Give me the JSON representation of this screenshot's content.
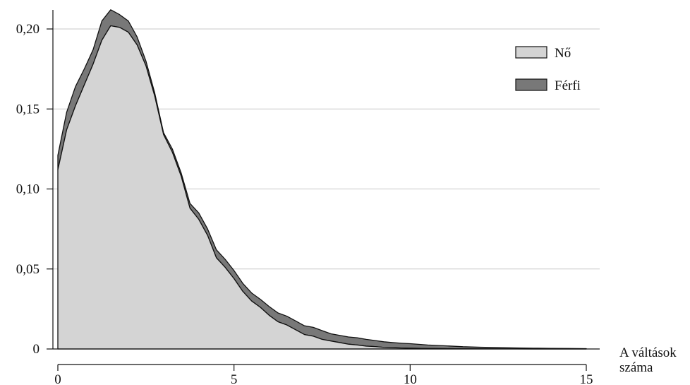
{
  "chart_data": {
    "type": "area",
    "stacked": true,
    "x": [
      0,
      0.25,
      0.5,
      0.75,
      1,
      1.25,
      1.5,
      1.75,
      2,
      2.25,
      2.5,
      2.75,
      3,
      3.25,
      3.5,
      3.75,
      4,
      4.25,
      4.5,
      4.75,
      5,
      5.25,
      5.5,
      5.75,
      6,
      6.25,
      6.5,
      6.75,
      7,
      7.25,
      7.5,
      7.75,
      8,
      8.25,
      8.5,
      8.75,
      9,
      9.25,
      9.5,
      9.75,
      10,
      10.5,
      11,
      11.5,
      12,
      12.5,
      13,
      13.5,
      14,
      14.5,
      15
    ],
    "series": [
      {
        "name": "Nő",
        "color": "#d4d4d4",
        "values": [
          0.112,
          0.137,
          0.152,
          0.165,
          0.178,
          0.193,
          0.202,
          0.201,
          0.198,
          0.19,
          0.177,
          0.158,
          0.134,
          0.123,
          0.108,
          0.088,
          0.081,
          0.071,
          0.057,
          0.051,
          0.044,
          0.036,
          0.03,
          0.026,
          0.021,
          0.017,
          0.015,
          0.012,
          0.009,
          0.008,
          0.006,
          0.005,
          0.004,
          0.003,
          0.0025,
          0.0018,
          0.0015,
          0.001,
          0.0008,
          0.0006,
          0.0005,
          0.0003,
          0.0002,
          0.0001,
          0.0001,
          5e-05,
          5e-05,
          0,
          0,
          0,
          0
        ]
      },
      {
        "name": "Férfi",
        "color": "#787878",
        "values": [
          0.009,
          0.011,
          0.012,
          0.01,
          0.009,
          0.012,
          0.01,
          0.008,
          0.007,
          0.005,
          0.003,
          0.002,
          0.0012,
          0.002,
          0.002,
          0.003,
          0.004,
          0.004,
          0.005,
          0.005,
          0.005,
          0.005,
          0.005,
          0.005,
          0.0055,
          0.0055,
          0.0055,
          0.0055,
          0.0055,
          0.0055,
          0.0055,
          0.0045,
          0.0045,
          0.0045,
          0.0045,
          0.0042,
          0.0038,
          0.0035,
          0.0032,
          0.003,
          0.0028,
          0.0022,
          0.0018,
          0.0013,
          0.001,
          0.0008,
          0.0006,
          0.0005,
          0.0004,
          0.0003,
          0.0002
        ]
      }
    ],
    "xlabel": "A váltások száma",
    "ylabel": "",
    "xlim": [
      0,
      15
    ],
    "ylim": [
      0,
      0.21
    ],
    "x_ticks": [
      0,
      5,
      10,
      15
    ],
    "x_tick_labels": [
      "0",
      "5",
      "10",
      "15"
    ],
    "y_ticks": [
      0,
      0.05,
      0.1,
      0.15,
      0.2
    ],
    "y_tick_labels": [
      "0",
      "0,05",
      "0,10",
      "0,15",
      "0,20"
    ],
    "grid": true,
    "legend_position": "top-right",
    "legend": [
      "Nő",
      "Férfi"
    ]
  }
}
